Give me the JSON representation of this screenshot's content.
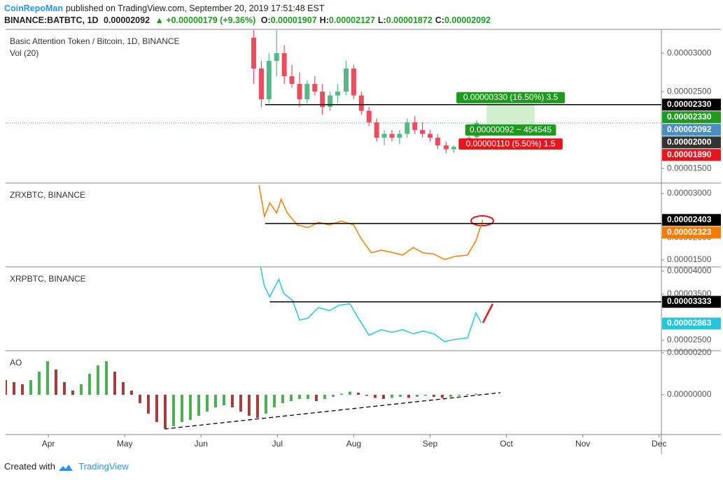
{
  "header": {
    "author": "CoinRepoMan",
    "published": "published on TradingView.com, September 20, 2019 17:51:48 EST",
    "symbol": "BINANCE:BATBTC, 1D",
    "last": "0.00002092",
    "change": "▲ +0.00000179 (+9.36%)",
    "ohlc": [
      {
        "key": "O:",
        "value": "0.00001907"
      },
      {
        "key": "H:",
        "value": "0.00002127"
      },
      {
        "key": "L:",
        "value": "0.00001872"
      },
      {
        "key": "C:",
        "value": "0.00002092"
      }
    ]
  },
  "footer": {
    "text": "Created with",
    "logo": "TradingView"
  },
  "x_axis": {
    "xlim": [
      -0.56,
      8.03
    ],
    "xticks": [
      {
        "value": 0,
        "label": "Apr"
      },
      {
        "value": 1,
        "label": "May"
      },
      {
        "value": 2,
        "label": "Jun"
      },
      {
        "value": 3,
        "label": "Jul"
      },
      {
        "value": 4,
        "label": "Aug"
      },
      {
        "value": 5,
        "label": "Sep"
      },
      {
        "value": 6,
        "label": "Oct"
      },
      {
        "value": 7,
        "label": "Nov"
      },
      {
        "value": 8,
        "label": "Dec"
      }
    ]
  },
  "chart_data": [
    {
      "type": "candlestick",
      "title": "Basic Attention Token / Bitcoin, 1D, BINANCE",
      "subtitle": "Vol (20)",
      "x": [
        2.69,
        2.79,
        2.89,
        2.99,
        3.09,
        3.19,
        3.29,
        3.39,
        3.49,
        3.59,
        3.69,
        3.79,
        3.9,
        4.0,
        4.1,
        4.2,
        4.3,
        4.4,
        4.5,
        4.6,
        4.7,
        4.8,
        4.9,
        5.0,
        5.1,
        5.21,
        5.31,
        5.41,
        5.51,
        5.61
      ],
      "open": [
        3.2e-05,
        2.8e-05,
        2.4e-05,
        2.9e-05,
        3e-05,
        2.7e-05,
        2.6e-05,
        2.4e-05,
        2.6e-05,
        2.5e-05,
        2.3e-05,
        2.45e-05,
        2.5e-05,
        2.8e-05,
        2.45e-05,
        2.25e-05,
        2.1e-05,
        1.9e-05,
        1.95e-05,
        1.9e-05,
        1.95e-05,
        2.1e-05,
        2e-05,
        1.95e-05,
        1.9e-05,
        1.8e-05,
        1.75e-05,
        1.78e-05,
        1.82e-05,
        1.907e-05
      ],
      "high": [
        3.3e-05,
        2.9e-05,
        3e-05,
        3.3e-05,
        3.1e-05,
        2.85e-05,
        2.75e-05,
        2.65e-05,
        2.7e-05,
        2.6e-05,
        2.5e-05,
        2.6e-05,
        2.9e-05,
        2.85e-05,
        2.5e-05,
        2.3e-05,
        2.15e-05,
        2e-05,
        2e-05,
        2e-05,
        2.15e-05,
        2.18e-05,
        2.1e-05,
        2e-05,
        1.95e-05,
        1.85e-05,
        1.8e-05,
        1.85e-05,
        1.95e-05,
        2.127e-05
      ],
      "low": [
        2.6e-05,
        2.3e-05,
        2.35e-05,
        2.7e-05,
        2.6e-05,
        2.55e-05,
        2.3e-05,
        2.35e-05,
        2.45e-05,
        2.2e-05,
        2.25e-05,
        2.35e-05,
        2.45e-05,
        2.4e-05,
        2.2e-05,
        2.05e-05,
        1.85e-05,
        1.8e-05,
        1.85e-05,
        1.82e-05,
        1.9e-05,
        1.95e-05,
        1.9e-05,
        1.85e-05,
        1.75e-05,
        1.7e-05,
        1.7e-05,
        1.75e-05,
        1.8e-05,
        1.872e-05
      ],
      "close": [
        2.8e-05,
        2.4e-05,
        2.9e-05,
        3e-05,
        2.7e-05,
        2.6e-05,
        2.4e-05,
        2.6e-05,
        2.5e-05,
        2.3e-05,
        2.45e-05,
        2.5e-05,
        2.8e-05,
        2.45e-05,
        2.25e-05,
        2.1e-05,
        1.9e-05,
        1.95e-05,
        1.9e-05,
        1.95e-05,
        2.1e-05,
        2e-05,
        1.95e-05,
        1.9e-05,
        1.8e-05,
        1.75e-05,
        1.78e-05,
        1.82e-05,
        1.9e-05,
        2.092e-05
      ],
      "up_color": "#53b987",
      "down_color": "#eb4d5c",
      "ylim": [
        1.31e-05,
        3.31e-05
      ],
      "yticks": [
        {
          "value": 1.5e-05,
          "label": "0.00001500"
        },
        {
          "value": 2.5e-05,
          "label": "0.00002500"
        },
        {
          "value": 3e-05,
          "label": "0.00003000"
        }
      ],
      "hlines": [
        {
          "value": 2.33e-05,
          "x0": 2.84,
          "color": "#000000"
        }
      ],
      "price_line": {
        "value": 2.092e-05,
        "color": "#4a8fc0"
      },
      "axis_labels": [
        {
          "value": 2.33e-05,
          "label": "0.00002330",
          "color": "#000000"
        },
        {
          "value": 2.33e-05,
          "label": "0.00002330",
          "color": "#1e9a1e"
        },
        {
          "value": 2.092e-05,
          "label": "0.00002092",
          "color": "#4a8fc0"
        },
        {
          "value": 2e-05,
          "label": "0.00002000",
          "color": "#333333"
        },
        {
          "value": 1.89e-05,
          "label": "0.00001890",
          "color": "#e8141f"
        }
      ],
      "position": {
        "x": [
          5.74,
          6.37
        ],
        "entry": 2e-05,
        "target": 2.33e-05,
        "color": "#c8ecc4",
        "labels": [
          {
            "text": "0.00000330 (16.50%) 3.5",
            "color": "#1e9a1e"
          },
          {
            "text": "0.00000092 ~ 454545",
            "color": "#1e9a1e"
          },
          {
            "text": "0.00000110 (5.50%) 1.5",
            "color": "#e8141f"
          }
        ]
      }
    },
    {
      "type": "line",
      "title": "ZRXBTC, BINANCE",
      "color": "#f57c00",
      "x": [
        2.76,
        2.83,
        2.9,
        2.99,
        3.05,
        3.13,
        3.26,
        3.4,
        3.54,
        3.68,
        3.84,
        4.0,
        4.09,
        4.23,
        4.36,
        4.5,
        4.64,
        4.78,
        4.91,
        5.05,
        5.19,
        5.33,
        5.49,
        5.6,
        5.69
      ],
      "values": [
        3.19e-05,
        2.48e-05,
        2.79e-05,
        2.56e-05,
        2.87e-05,
        2.56e-05,
        2.29e-05,
        2.23e-05,
        2.35e-05,
        2.29e-05,
        2.38e-05,
        2.29e-05,
        2e-05,
        1.66e-05,
        1.72e-05,
        1.67e-05,
        1.61e-05,
        1.78e-05,
        1.66e-05,
        1.63e-05,
        1.51e-05,
        1.58e-05,
        1.61e-05,
        1.93e-05,
        2.4e-05
      ],
      "ylim": [
        1.342e-05,
        3.237e-05
      ],
      "yticks": [
        {
          "value": 1.5e-05,
          "label": "0.00001500"
        },
        {
          "value": 2e-05,
          "label": "0.00002000"
        },
        {
          "value": 3e-05,
          "label": "0.00003000"
        }
      ],
      "hlines": [
        {
          "value": 2.323e-05,
          "x0": 2.84,
          "color": "#000000"
        }
      ],
      "axis_labels": [
        {
          "value": 2.403e-05,
          "label": "0.00002403",
          "color": "#000000"
        },
        {
          "value": 2.323e-05,
          "label": "0.00002323",
          "color": "#f57c00"
        }
      ]
    },
    {
      "type": "line",
      "title": "XRPBTC, BINANCE",
      "color": "#26c6da",
      "x": [
        2.78,
        2.83,
        2.9,
        2.96,
        3.02,
        3.08,
        3.2,
        3.29,
        3.4,
        3.54,
        3.68,
        3.81,
        3.95,
        4.06,
        4.2,
        4.36,
        4.5,
        4.64,
        4.78,
        4.91,
        5.05,
        5.19,
        5.33,
        5.49,
        5.6,
        5.67
      ],
      "values": [
        4.09e-05,
        3.67e-05,
        3.44e-05,
        3.64e-05,
        3.82e-05,
        3.52e-05,
        3.36e-05,
        2.94e-05,
        2.98e-05,
        3.21e-05,
        3.14e-05,
        3.26e-05,
        3.29e-05,
        2.98e-05,
        2.61e-05,
        2.73e-05,
        2.67e-05,
        2.73e-05,
        2.64e-05,
        2.7e-05,
        2.64e-05,
        2.47e-05,
        2.52e-05,
        2.55e-05,
        3.09e-05,
        2.88e-05
      ],
      "ylim": [
        2.273e-05,
        4.09e-05
      ],
      "yticks": [
        {
          "value": 2.5e-05,
          "label": "0.00002500"
        },
        {
          "value": 3.5e-05,
          "label": "0.00003500"
        },
        {
          "value": 4e-05,
          "label": "0.00004000"
        }
      ],
      "hlines": [
        {
          "value": 3.333e-05,
          "x0": 2.9,
          "color": "#000000"
        }
      ],
      "axis_labels": [
        {
          "value": 3.333e-05,
          "label": "0.00003333",
          "color": "#000000"
        },
        {
          "value": 2.863e-05,
          "label": "0.00002863",
          "color": "#26c6da"
        }
      ]
    },
    {
      "type": "bar",
      "title": "AO",
      "up_color": "#4caf50",
      "down_color": "#a83b3b",
      "x": [
        -0.56,
        -0.45,
        -0.34,
        -0.23,
        -0.12,
        -0.01,
        0.1,
        0.21,
        0.32,
        0.43,
        0.54,
        0.65,
        0.76,
        0.87,
        0.98,
        1.09,
        1.2,
        1.31,
        1.42,
        1.53,
        1.64,
        1.75,
        1.86,
        1.97,
        2.08,
        2.19,
        2.3,
        2.41,
        2.52,
        2.63,
        2.74,
        2.85,
        2.96,
        3.07,
        3.18,
        3.29,
        3.4,
        3.51,
        3.62,
        3.73,
        3.84,
        3.95,
        4.06,
        4.17,
        4.28,
        4.39,
        4.5,
        4.61,
        4.72,
        4.83,
        4.94,
        5.05,
        5.16,
        5.27,
        5.38,
        5.49,
        5.6
      ],
      "values": [
        7e-07,
        6e-07,
        5e-07,
        7e-07,
        1.1e-06,
        1.6e-06,
        1.2e-06,
        6e-07,
        2e-07,
        5e-07,
        1e-06,
        1.4e-06,
        1.6e-06,
        1.1e-06,
        6e-07,
        2e-07,
        -4e-07,
        -9e-07,
        -1.3e-06,
        -1.6e-06,
        -1.5e-06,
        -1.3e-06,
        -1.2e-06,
        -1e-06,
        -8e-07,
        -6e-07,
        -5e-07,
        -6e-07,
        -8e-07,
        -1e-06,
        -1.1e-06,
        -9e-07,
        -6e-07,
        -4e-07,
        -3e-07,
        -2e-07,
        -2e-07,
        -3e-07,
        -2e-07,
        -1e-07,
        5e-08,
        1.5e-07,
        1e-07,
        -5e-08,
        -1.5e-07,
        -2e-07,
        -1.5e-07,
        -1e-07,
        -1.5e-07,
        -1e-07,
        -5e-08,
        -1e-07,
        -1.5e-07,
        -1e-07,
        -5e-08,
        2e-08,
        5e-08
      ],
      "ylim": [
        -1.9e-06,
        2.1e-06
      ],
      "yticks": [
        {
          "value": 0,
          "label": "0.00000000"
        },
        {
          "value": 2e-06,
          "label": "0.00000200"
        }
      ]
    }
  ]
}
